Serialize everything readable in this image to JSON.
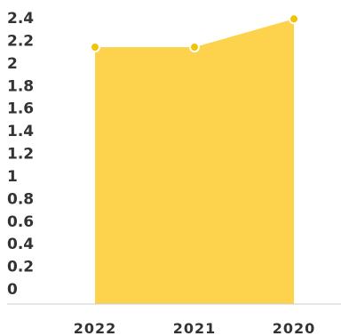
{
  "chart_data": {
    "type": "area",
    "categories": [
      "2022",
      "2021",
      "2020"
    ],
    "values": [
      2.14,
      2.14,
      2.39
    ],
    "ylim": [
      0,
      2.4
    ],
    "yticks": [
      "0",
      "0.2",
      "0.4",
      "0.6",
      "0.8",
      "1",
      "1.2",
      "1.4",
      "1.6",
      "1.8",
      "2",
      "2.2",
      "2.4"
    ],
    "grid": false,
    "legend": "none",
    "colors": {
      "area": "#FDD34D",
      "marker": "#F5C200",
      "axis": "#cccccc",
      "text": "#333333"
    }
  }
}
